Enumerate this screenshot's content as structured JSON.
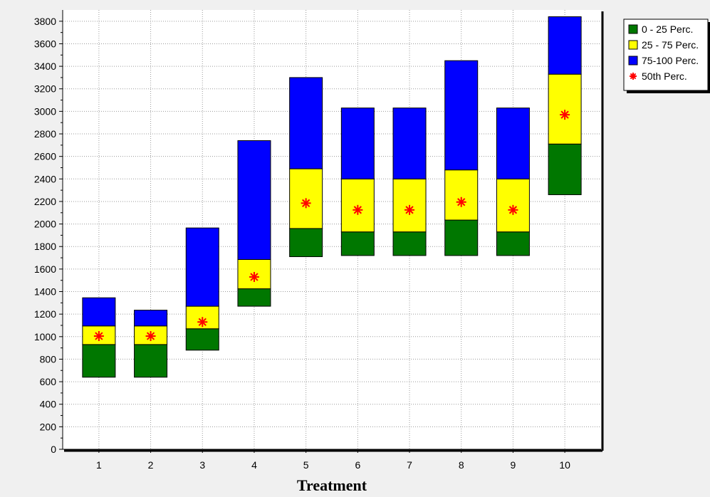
{
  "chart_data": {
    "type": "box",
    "title": "",
    "xlabel": "Treatment",
    "ylabel": "",
    "ylim": [
      0,
      3900
    ],
    "yticks": [
      0,
      200,
      400,
      600,
      800,
      1000,
      1200,
      1400,
      1600,
      1800,
      2000,
      2200,
      2400,
      2600,
      2800,
      3000,
      3200,
      3400,
      3600,
      3800
    ],
    "categories": [
      "1",
      "2",
      "3",
      "4",
      "5",
      "6",
      "7",
      "8",
      "9",
      "10"
    ],
    "grid": true,
    "legend_position": "top-right",
    "series": [
      {
        "name": "0 - 25 Perc.",
        "color": "#007700",
        "low": [
          640,
          640,
          880,
          1270,
          1710,
          1720,
          1720,
          1720,
          1720,
          2260
        ],
        "high": [
          930,
          930,
          1070,
          1425,
          1960,
          1930,
          1930,
          2035,
          1930,
          2710
        ]
      },
      {
        "name": "25 - 75 Perc.",
        "color": "#ffff00",
        "low": [
          930,
          930,
          1070,
          1425,
          1960,
          1930,
          1930,
          2035,
          1930,
          2710
        ],
        "high": [
          1095,
          1095,
          1270,
          1685,
          2490,
          2400,
          2400,
          2480,
          2400,
          3330
        ]
      },
      {
        "name": "75-100 Perc.",
        "color": "#0000ff",
        "low": [
          1095,
          1095,
          1270,
          1685,
          2490,
          2400,
          2400,
          2480,
          2400,
          3330
        ],
        "high": [
          1345,
          1235,
          1965,
          2740,
          3300,
          3030,
          3030,
          3450,
          3030,
          3840
        ]
      },
      {
        "name": "50th Perc.",
        "color": "#ff0000",
        "marker": "asterisk",
        "values": [
          1005,
          1005,
          1130,
          1530,
          2185,
          2125,
          2125,
          2195,
          2125,
          2970
        ]
      }
    ]
  }
}
